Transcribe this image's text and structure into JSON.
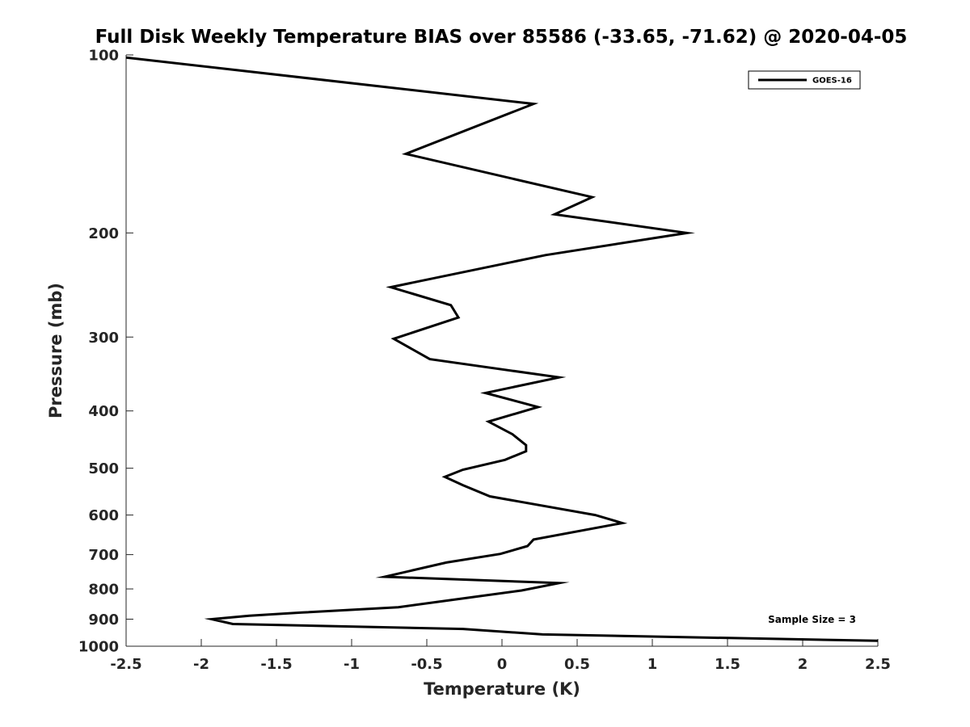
{
  "chart_data": {
    "type": "line",
    "title": "Full Disk Weekly Temperature BIAS over 85586 (-33.65, -71.62) @ 2020-04-05",
    "xlabel": "Temperature (K)",
    "ylabel": "Pressure (mb)",
    "xlim": [
      -2.5,
      2.5
    ],
    "ylim": [
      100,
      1000
    ],
    "yscale": "log",
    "yreversed": true,
    "grid": false,
    "legend_position": "top-right",
    "xticks": [
      -2.5,
      -2,
      -1.5,
      -1,
      -0.5,
      0,
      0.5,
      1,
      1.5,
      2,
      2.5
    ],
    "xtick_labels": [
      "-2.5",
      "-2",
      "-1.5",
      "-1",
      "-0.5",
      "0",
      "0.5",
      "1",
      "1.5",
      "2",
      "2.5"
    ],
    "yticks": [
      100,
      200,
      300,
      400,
      500,
      600,
      700,
      800,
      900,
      1000
    ],
    "ytick_labels": [
      "100",
      "200",
      "300",
      "400",
      "500",
      "600",
      "700",
      "800",
      "900",
      "1000"
    ],
    "annotation": "Sample Size = 3",
    "series": [
      {
        "name": "GOES-16",
        "color": "#000000",
        "points": [
          {
            "x": -2.5,
            "y": 101
          },
          {
            "x": 0.21,
            "y": 121
          },
          {
            "x": -0.64,
            "y": 147
          },
          {
            "x": 0.6,
            "y": 174
          },
          {
            "x": 0.35,
            "y": 186
          },
          {
            "x": 1.23,
            "y": 200
          },
          {
            "x": 0.29,
            "y": 218
          },
          {
            "x": -0.74,
            "y": 247
          },
          {
            "x": -0.34,
            "y": 265
          },
          {
            "x": -0.29,
            "y": 278
          },
          {
            "x": -0.72,
            "y": 302
          },
          {
            "x": -0.48,
            "y": 327
          },
          {
            "x": 0.38,
            "y": 351
          },
          {
            "x": -0.11,
            "y": 373
          },
          {
            "x": 0.24,
            "y": 394
          },
          {
            "x": -0.09,
            "y": 417
          },
          {
            "x": 0.07,
            "y": 438
          },
          {
            "x": 0.16,
            "y": 457
          },
          {
            "x": 0.16,
            "y": 468
          },
          {
            "x": 0.02,
            "y": 484
          },
          {
            "x": -0.26,
            "y": 503
          },
          {
            "x": -0.38,
            "y": 517
          },
          {
            "x": -0.26,
            "y": 534
          },
          {
            "x": -0.08,
            "y": 558
          },
          {
            "x": 0.62,
            "y": 600
          },
          {
            "x": 0.8,
            "y": 619
          },
          {
            "x": 0.21,
            "y": 660
          },
          {
            "x": 0.17,
            "y": 677
          },
          {
            "x": -0.01,
            "y": 698
          },
          {
            "x": -0.37,
            "y": 722
          },
          {
            "x": -0.78,
            "y": 763
          },
          {
            "x": 0.38,
            "y": 782
          },
          {
            "x": 0.13,
            "y": 805
          },
          {
            "x": -0.35,
            "y": 836
          },
          {
            "x": -0.69,
            "y": 859
          },
          {
            "x": -1.33,
            "y": 877
          },
          {
            "x": -1.68,
            "y": 888
          },
          {
            "x": -1.93,
            "y": 900
          },
          {
            "x": -1.79,
            "y": 917
          },
          {
            "x": -0.26,
            "y": 935
          },
          {
            "x": 0.27,
            "y": 955
          },
          {
            "x": 2.5,
            "y": 979
          }
        ]
      }
    ]
  }
}
